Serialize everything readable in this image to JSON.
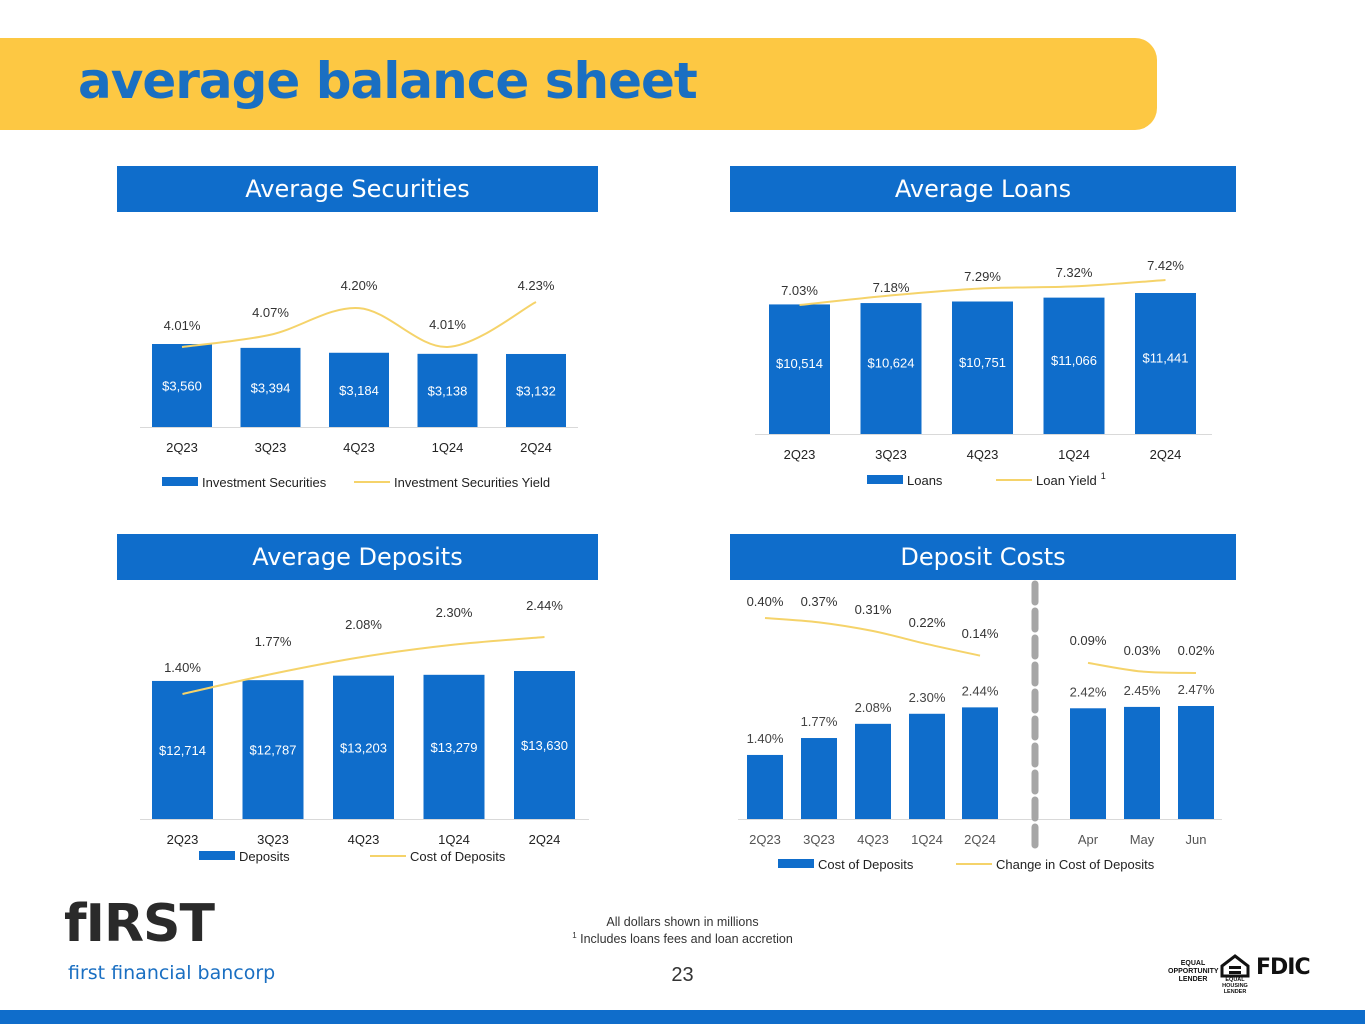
{
  "page": {
    "title": "average balance sheet",
    "footnote_line1": "All dollars shown in millions",
    "footnote_sup": "1",
    "footnote_line2": " Includes loans fees and loan accretion",
    "page_number": "23",
    "logo_word": "fIRST",
    "logo_sub": "first financial bancorp",
    "equal_opportunity_lender": "EQUAL OPPORTUNITY LENDER",
    "equal_housing_lender": "EQUAL HOUSING LENDER",
    "fdic": "FDIC"
  },
  "colors": {
    "brand_blue": "#0f6dcb",
    "title_blue": "#1a6fc2",
    "banner_yellow": "#fdc843",
    "line_yellow": "#f5d36a",
    "dash_gray": "#a6a6a6"
  },
  "panels": {
    "securities": "Average Securities",
    "loans": "Average Loans",
    "deposits": "Average Deposits",
    "costs": "Deposit Costs"
  },
  "chart_data": [
    {
      "id": "securities",
      "type": "bar",
      "categories": [
        "2Q23",
        "3Q23",
        "4Q23",
        "1Q24",
        "2Q24"
      ],
      "series": [
        {
          "name": "Investment Securities",
          "type": "bar",
          "values": [
            3560,
            3394,
            3184,
            3138,
            3132
          ],
          "labels": [
            "$3,560",
            "$3,394",
            "$3,184",
            "$3,138",
            "$3,132"
          ]
        },
        {
          "name": "Investment Securities Yield",
          "type": "line",
          "values": [
            4.01,
            4.07,
            4.2,
            4.01,
            4.23
          ],
          "labels": [
            "4.01%",
            "4.07%",
            "4.20%",
            "4.01%",
            "4.23%"
          ]
        }
      ]
    },
    {
      "id": "loans",
      "type": "bar",
      "categories": [
        "2Q23",
        "3Q23",
        "4Q23",
        "1Q24",
        "2Q24"
      ],
      "series": [
        {
          "name": "Loans",
          "type": "bar",
          "values": [
            10514,
            10624,
            10751,
            11066,
            11441
          ],
          "labels": [
            "$10,514",
            "$10,624",
            "$10,751",
            "$11,066",
            "$11,441"
          ]
        },
        {
          "name": "Loan Yield",
          "name_sup": "1",
          "type": "line",
          "values": [
            7.03,
            7.18,
            7.29,
            7.32,
            7.42
          ],
          "labels": [
            "7.03%",
            "7.18%",
            "7.29%",
            "7.32%",
            "7.42%"
          ]
        }
      ]
    },
    {
      "id": "deposits",
      "type": "bar",
      "categories": [
        "2Q23",
        "3Q23",
        "4Q23",
        "1Q24",
        "2Q24"
      ],
      "series": [
        {
          "name": "Deposits",
          "type": "bar",
          "values": [
            12714,
            12787,
            13203,
            13279,
            13630
          ],
          "labels": [
            "$12,714",
            "$12,787",
            "$13,203",
            "$13,279",
            "$13,630"
          ]
        },
        {
          "name": "Cost of Deposits",
          "type": "line",
          "values": [
            1.4,
            1.77,
            2.08,
            2.3,
            2.44
          ],
          "labels": [
            "1.40%",
            "1.77%",
            "2.08%",
            "2.30%",
            "2.44%"
          ]
        }
      ]
    },
    {
      "id": "costs",
      "type": "bar",
      "categories": [
        "2Q23",
        "3Q23",
        "4Q23",
        "1Q24",
        "2Q24",
        "Apr",
        "May",
        "Jun"
      ],
      "divider_after_index": 4,
      "series": [
        {
          "name": "Cost of Deposits",
          "type": "bar",
          "values": [
            1.4,
            1.77,
            2.08,
            2.3,
            2.44,
            2.42,
            2.45,
            2.47
          ],
          "labels": [
            "1.40%",
            "1.77%",
            "2.08%",
            "2.30%",
            "2.44%",
            "2.42%",
            "2.45%",
            "2.47%"
          ]
        },
        {
          "name": "Change in Cost of Deposits",
          "type": "line",
          "values": [
            0.4,
            0.37,
            0.31,
            0.22,
            0.14,
            0.09,
            0.03,
            0.02
          ],
          "labels": [
            "0.40%",
            "0.37%",
            "0.31%",
            "0.22%",
            "0.14%",
            "0.09%",
            "0.03%",
            "0.02%"
          ]
        }
      ]
    }
  ]
}
